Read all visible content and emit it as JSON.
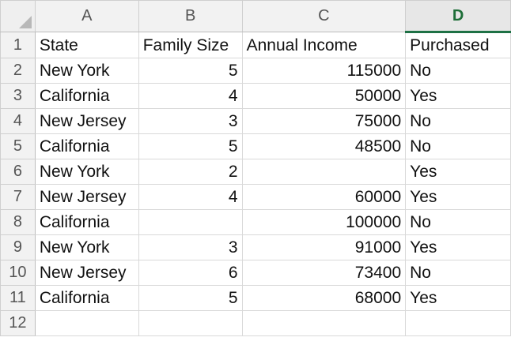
{
  "column_headers": [
    "A",
    "B",
    "C",
    "D"
  ],
  "selected_column": "D",
  "row_headers": [
    "1",
    "2",
    "3",
    "4",
    "5",
    "6",
    "7",
    "8",
    "9",
    "10",
    "11",
    "12"
  ],
  "rows": [
    [
      "State",
      "Family Size",
      "Annual Income",
      "Purchased"
    ],
    [
      "New York",
      "5",
      "115000",
      "No"
    ],
    [
      "California",
      "4",
      "50000",
      "Yes"
    ],
    [
      "New Jersey",
      "3",
      "75000",
      "No"
    ],
    [
      "California",
      "5",
      "48500",
      "No"
    ],
    [
      "New York",
      "2",
      "",
      "Yes"
    ],
    [
      "New Jersey",
      "4",
      "60000",
      "Yes"
    ],
    [
      "California",
      "",
      "100000",
      "No"
    ],
    [
      "New York",
      "3",
      "91000",
      "Yes"
    ],
    [
      "New Jersey",
      "6",
      "73400",
      "No"
    ],
    [
      "California",
      "5",
      "68000",
      "Yes"
    ],
    [
      "",
      "",
      "",
      ""
    ]
  ],
  "colors": {
    "selected_header_text": "#1e6e38",
    "selected_header_underline": "#1e7145",
    "gridline": "#d9d9d9",
    "header_bg": "#f2f2f2"
  }
}
